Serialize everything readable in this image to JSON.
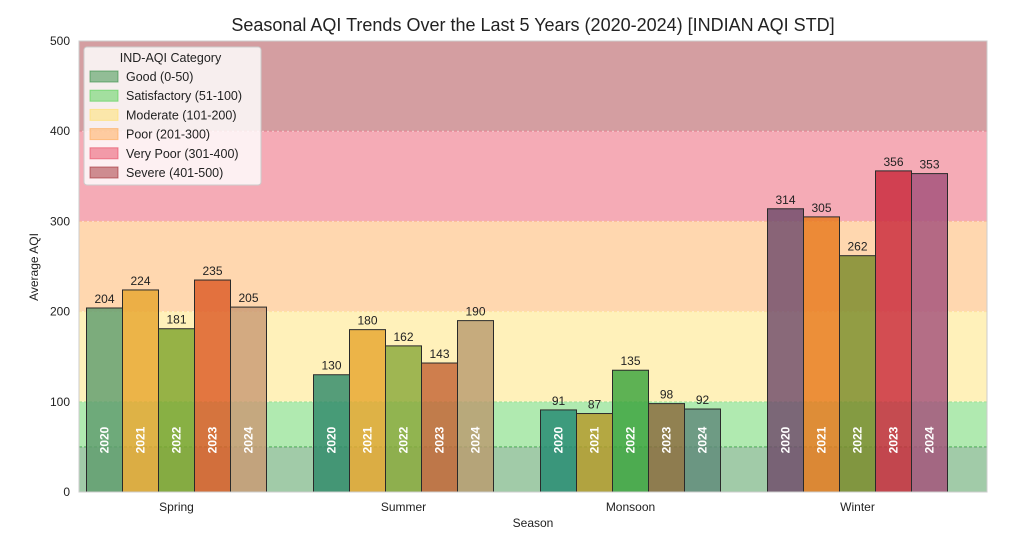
{
  "chart_data": {
    "type": "bar",
    "title": "Seasonal AQI Trends Over the Last 5 Years (2020-2024) [INDIAN AQI STD]",
    "xlabel": "Season",
    "ylabel": "Average AQI",
    "ylim": [
      0,
      500
    ],
    "yticks": [
      0,
      100,
      200,
      300,
      400,
      500
    ],
    "grid": true,
    "categories": [
      "Spring",
      "Summer",
      "Monsoon",
      "Winter"
    ],
    "series": [
      {
        "name": "2020",
        "values": [
          204,
          130,
          91,
          314
        ],
        "color": "#2a7a63"
      },
      {
        "name": "2021",
        "values": [
          224,
          180,
          87,
          305
        ],
        "color": "#e89a1c"
      },
      {
        "name": "2022",
        "values": [
          181,
          162,
          135,
          262
        ],
        "color": "#5aa32a"
      },
      {
        "name": "2023",
        "values": [
          235,
          143,
          98,
          356
        ],
        "color": "#d2461e"
      },
      {
        "name": "2024",
        "values": [
          205,
          190,
          92,
          353
        ],
        "color": "#a98a62"
      }
    ],
    "bar_colors": [
      [
        "#5f9c6e",
        "#e8a62e",
        "#7fa32c",
        "#dd5a24",
        "#c99a74"
      ],
      [
        "#2f8a6a",
        "#e8a62e",
        "#8aa83a",
        "#c46434",
        "#b99b6f"
      ],
      [
        "#238a72",
        "#b59a2a",
        "#3aa43d",
        "#8a6a3c",
        "#5f8a7a"
      ],
      [
        "#6f4a6a",
        "#e8791c",
        "#7a8a2a",
        "#c9283a",
        "#a4507a"
      ]
    ],
    "legend": {
      "title": "IND-AQI Category",
      "position": "top-left",
      "entries": [
        {
          "label": "Good (0-50)",
          "color": "#2e8b3e",
          "range": [
            0,
            50
          ]
        },
        {
          "label": "Satisfactory (51-100)",
          "color": "#4fd04f",
          "range": [
            50,
            100
          ]
        },
        {
          "label": "Moderate (101-200)",
          "color": "#ffe066",
          "range": [
            100,
            200
          ]
        },
        {
          "label": "Poor (201-300)",
          "color": "#ffa64d",
          "range": [
            200,
            300
          ]
        },
        {
          "label": "Very Poor (301-400)",
          "color": "#e8445e",
          "range": [
            300,
            400
          ]
        },
        {
          "label": "Severe (401-500)",
          "color": "#a0282e",
          "range": [
            400,
            500
          ]
        }
      ]
    }
  }
}
